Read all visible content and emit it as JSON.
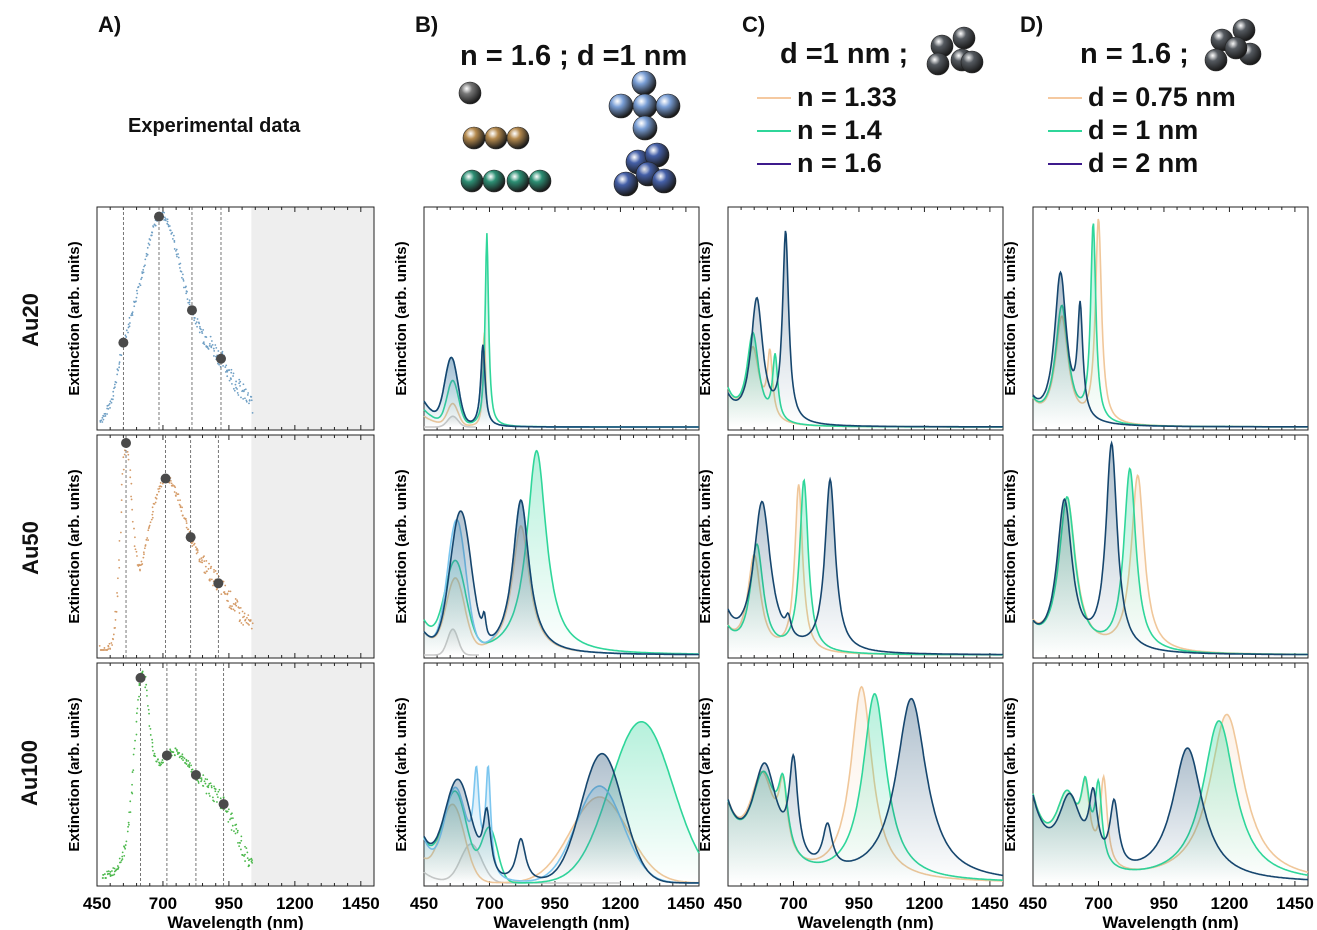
{
  "headers": {
    "A": {
      "letter": "A)",
      "title": "Experimental data"
    },
    "B": {
      "letter": "B)",
      "title": "n = 1.6 ; d =1 nm"
    },
    "C": {
      "letter": "C)",
      "title": "d =1 nm ;",
      "legend": [
        {
          "label": "n = 1.33",
          "color": "#f5c9a0"
        },
        {
          "label": "n = 1.4",
          "color": "#2fd69a"
        },
        {
          "label": "n = 1.6",
          "color": "#3d1a8c"
        }
      ]
    },
    "D": {
      "letter": "D)",
      "title": "n = 1.6 ;",
      "legend": [
        {
          "label": "d = 0.75 nm",
          "color": "#f5c9a0"
        },
        {
          "label": "d = 1 nm",
          "color": "#2fd69a"
        },
        {
          "label": "d = 2 nm",
          "color": "#3d1a8c"
        }
      ]
    }
  },
  "rows": [
    "Au20",
    "Au50",
    "Au100"
  ],
  "ylabel": "Extinction (arb. units)",
  "xlabel": "Wavelength (nm)",
  "xticks": [
    "450",
    "700",
    "950",
    "1200",
    "1450"
  ],
  "colors": {
    "exp_au20": "#6f9fc4",
    "exp_au50": "#d49a66",
    "exp_au100": "#4cb84c",
    "monomer": "#c8c8c8",
    "dimer": "#f0c79a",
    "trimer": "#2fd69a",
    "tetramer_linear": "#2fd69a",
    "cross": "#7cc6ef",
    "compact": "#16466e",
    "shade": "#e8eaee",
    "dot": "#4a4a4a"
  },
  "chart_data": [
    {
      "panel": "A",
      "type": "scatter",
      "xlabel": "Wavelength (nm)",
      "ylabel": "Extinction (arb. units)",
      "xlim": [
        450,
        1500
      ],
      "shaded_region": [
        1035,
        1500
      ],
      "series": [
        {
          "row": "Au20",
          "markers_x": [
            550,
            685,
            810,
            920
          ]
        },
        {
          "row": "Au50",
          "markers_x": [
            560,
            710,
            805,
            910
          ]
        },
        {
          "row": "Au100",
          "markers_x": [
            615,
            715,
            825,
            930
          ]
        }
      ]
    },
    {
      "panel": "B",
      "type": "line",
      "xlabel": "Wavelength (nm)",
      "ylabel": "Extinction (arb. units)",
      "xlim": [
        450,
        1500
      ]
    },
    {
      "panel": "C",
      "type": "line",
      "xlabel": "Wavelength (nm)",
      "ylabel": "Extinction (arb. units)",
      "xlim": [
        450,
        1500
      ]
    },
    {
      "panel": "D",
      "type": "line",
      "xlabel": "Wavelength (nm)",
      "ylabel": "Extinction (arb. units)",
      "xlim": [
        450,
        1500
      ]
    }
  ]
}
